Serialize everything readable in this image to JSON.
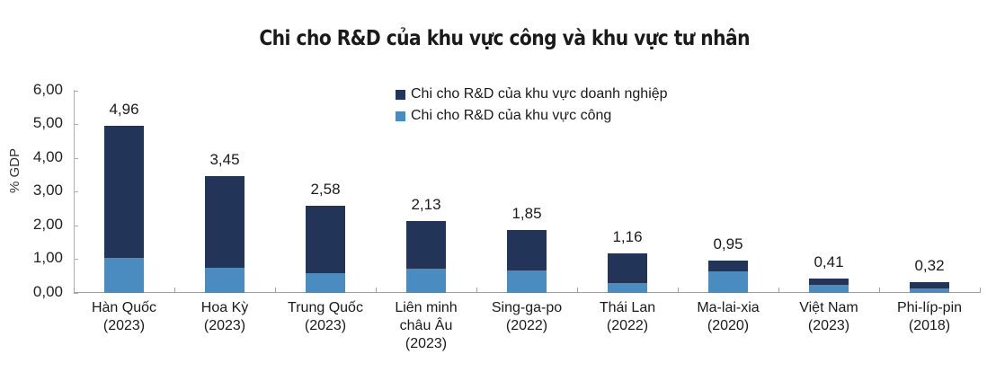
{
  "chart_data": {
    "type": "bar",
    "stacked": true,
    "title": "Chi cho R&D của khu vực công và khu vực tư nhân",
    "xlabel": "",
    "ylabel": "% GDP",
    "ylim": [
      0,
      6
    ],
    "yticks": [
      "0,00",
      "1,00",
      "2,00",
      "3,00",
      "4,00",
      "5,00",
      "6,00"
    ],
    "grid": false,
    "legend_position": "top-center",
    "categories": [
      "Hàn Quốc (2023)",
      "Hoa Kỳ (2023)",
      "Trung Quốc (2023)",
      "Liên minh châu Âu (2023)",
      "Sing-ga-po (2022)",
      "Thái Lan (2022)",
      "Ma-lai-xia (2020)",
      "Việt Nam (2023)",
      "Phi-líp-pin (2018)"
    ],
    "totals": [
      4.96,
      3.45,
      2.58,
      2.13,
      1.85,
      1.16,
      0.95,
      0.41,
      0.32
    ],
    "total_labels": [
      "4,96",
      "3,45",
      "2,58",
      "2,13",
      "1,85",
      "1,16",
      "0,95",
      "0,41",
      "0,32"
    ],
    "series": [
      {
        "name": "Chi cho R&D của khu vực doanh nghiệp",
        "color": "#223558",
        "values": [
          3.93,
          2.71,
          2.0,
          1.42,
          1.19,
          0.87,
          0.32,
          0.19,
          0.19
        ]
      },
      {
        "name": "Chi cho R&D của khu vực công",
        "color": "#4a8bc0",
        "values": [
          1.03,
          0.74,
          0.58,
          0.71,
          0.66,
          0.29,
          0.63,
          0.22,
          0.13
        ]
      }
    ]
  },
  "title": "Chi cho R&D của khu vực công và khu vực tư nhân",
  "y_axis": {
    "label": "% GDP",
    "ticks": [
      "0,00",
      "1,00",
      "2,00",
      "3,00",
      "4,00",
      "5,00",
      "6,00"
    ]
  },
  "legend": [
    {
      "label": "Chi cho R&D của khu vực doanh nghiệp",
      "color": "#223558"
    },
    {
      "label": "Chi cho R&D của khu vực công",
      "color": "#4a8bc0"
    }
  ],
  "categories": [
    {
      "lines": [
        "Hàn Quốc",
        "(2023)"
      ],
      "value_label": "4,96"
    },
    {
      "lines": [
        "Hoa Kỳ",
        "(2023)"
      ],
      "value_label": "3,45"
    },
    {
      "lines": [
        "Trung Quốc",
        "(2023)"
      ],
      "value_label": "2,58"
    },
    {
      "lines": [
        "Liên minh",
        "châu Âu",
        "(2023)"
      ],
      "value_label": "2,13"
    },
    {
      "lines": [
        "Sing-ga-po",
        "(2022)"
      ],
      "value_label": "1,85"
    },
    {
      "lines": [
        "Thái Lan",
        "(2022)"
      ],
      "value_label": "1,16"
    },
    {
      "lines": [
        "Ma-lai-xia",
        "(2020)"
      ],
      "value_label": "0,95"
    },
    {
      "lines": [
        "Việt Nam",
        "(2023)"
      ],
      "value_label": "0,41"
    },
    {
      "lines": [
        "Phi-líp-pin",
        "(2018)"
      ],
      "value_label": "0,32"
    }
  ]
}
